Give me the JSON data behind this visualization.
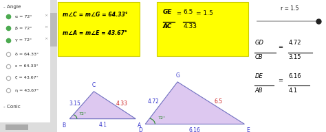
{
  "bg_color": "#ffffff",
  "left_panel_bg": "#eeeeee",
  "left_panel_items": [
    {
      "label": "a = 72°",
      "filled": true
    },
    {
      "label": "b = 72°",
      "filled": true
    },
    {
      "label": "g = 72°",
      "filled": true
    },
    {
      "label": "d = 64.33°",
      "filled": false
    },
    {
      "label": "e = 64.33°",
      "filled": false
    },
    {
      "label": "z = 43.67°",
      "filled": false
    },
    {
      "label": "h = 43.67°",
      "filled": false
    }
  ],
  "yb1_line1": "m∠C = m∠G = 64.33°",
  "yb1_line2": "m∠A = m∠E = 43.67°",
  "yb1_bg": "#ffff00",
  "yb2_bg": "#ffff00",
  "yb2_num": "GE",
  "yb2_den": "AC",
  "yb2_num_val": "6.5",
  "yb2_den_val": "4.33",
  "yb2_result": "= 1.5",
  "t1_fill": "#ddc8f0",
  "t1_edge": "#7070c0",
  "t1_blue": "#3333cc",
  "t1_red": "#cc2222",
  "t1_green": "#228822",
  "t1_B": [
    0.0,
    0.0
  ],
  "t1_A": [
    4.1,
    0.0
  ],
  "t1_C": [
    1.5,
    2.5
  ],
  "t1_BC": "3.15",
  "t1_AC": "4.33",
  "t1_BA": "4.1",
  "t1_angle": "72°",
  "t2_fill": "#ddc8f0",
  "t2_edge": "#7070c0",
  "t2_blue": "#3333cc",
  "t2_red": "#cc2222",
  "t2_green": "#228822",
  "t2_D": [
    0.0,
    0.0
  ],
  "t2_E": [
    6.16,
    0.0
  ],
  "t2_G": [
    2.0,
    3.85
  ],
  "t2_DG": "4.72",
  "t2_GE": "6.5",
  "t2_DE": "6.16",
  "t2_angle": "72°",
  "slider_label": "r = 1.5",
  "r1_num": "GD",
  "r1_den": "CB",
  "r1_nv": "4.72",
  "r1_dv": "3.15",
  "r2_num": "DE",
  "r2_den": "AB",
  "r2_nv": "6.16",
  "r2_dv": "4.1"
}
